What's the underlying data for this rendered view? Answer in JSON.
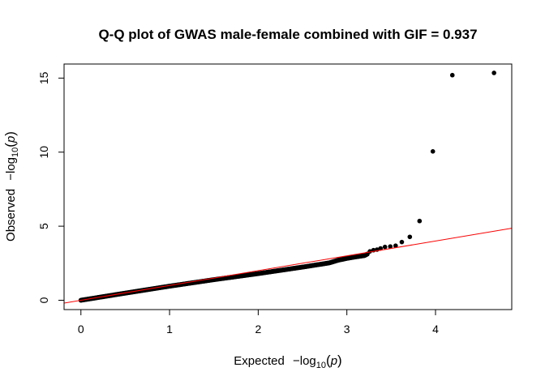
{
  "chart_data": {
    "type": "scatter",
    "title": "Q-Q plot of GWAS male-female combined with GIF = 0.937",
    "xlabel": {
      "prefix": "Expected",
      "minus": "−",
      "log": "log",
      "base": "10",
      "open": "(",
      "var": "p",
      "close": ")"
    },
    "ylabel": {
      "prefix": "Observed",
      "minus": "−",
      "log": "log",
      "base": "10",
      "open": "(",
      "var": "p",
      "close": ")"
    },
    "x_ticks": [
      0,
      1,
      2,
      3,
      4
    ],
    "x_tick_labels": [
      "0",
      "1",
      "2",
      "3",
      "4"
    ],
    "y_ticks": [
      0,
      5,
      10,
      15
    ],
    "y_tick_labels": [
      "0",
      "5",
      "10",
      "15"
    ],
    "xlim": [
      -0.19,
      4.86
    ],
    "ylim": [
      -0.63,
      15.95
    ],
    "reference_line": {
      "intercept": 0,
      "slope": 1,
      "color": "#ff0000"
    },
    "point_color": "#000000",
    "main_trend": [
      [
        0.0,
        0.0
      ],
      [
        0.5,
        0.48
      ],
      [
        1.0,
        0.95
      ],
      [
        1.5,
        1.39
      ],
      [
        2.0,
        1.8
      ],
      [
        2.5,
        2.24
      ],
      [
        2.8,
        2.52
      ],
      [
        2.9,
        2.7
      ],
      [
        3.0,
        2.83
      ],
      [
        3.1,
        2.93
      ],
      [
        3.2,
        3.02
      ],
      [
        3.24,
        3.15
      ]
    ],
    "points": [
      [
        3.26,
        3.3
      ],
      [
        3.3,
        3.38
      ],
      [
        3.34,
        3.42
      ],
      [
        3.38,
        3.5
      ],
      [
        3.43,
        3.6
      ],
      [
        3.49,
        3.63
      ],
      [
        3.55,
        3.68
      ],
      [
        3.62,
        3.93
      ],
      [
        3.71,
        4.28
      ],
      [
        3.82,
        5.35
      ],
      [
        3.97,
        10.05
      ],
      [
        4.19,
        15.2
      ],
      [
        4.66,
        15.35
      ]
    ],
    "grid": false,
    "legend": "none"
  }
}
